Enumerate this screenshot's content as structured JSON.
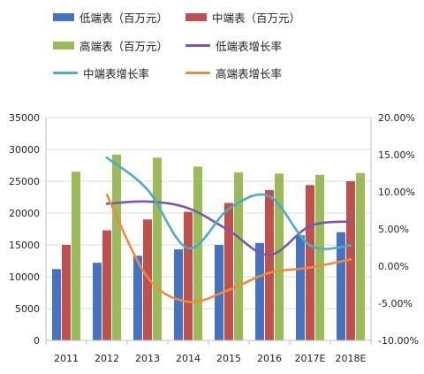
{
  "chart_data": {
    "type": "bar+line",
    "categories": [
      "2011",
      "2012",
      "2013",
      "2014",
      "2015",
      "2016",
      "2017E",
      "2018E"
    ],
    "bar_series": [
      {
        "name": "低端表（百万元）",
        "color": "#4472C4",
        "values": [
          11200,
          12200,
          13300,
          14300,
          15000,
          15300,
          16500,
          17000
        ]
      },
      {
        "name": "中端表（百万元）",
        "color": "#C0504D",
        "values": [
          15000,
          17300,
          19000,
          20200,
          21600,
          23600,
          24400,
          25000
        ]
      },
      {
        "name": "高端表（百万元）",
        "color": "#9BBB59",
        "values": [
          26500,
          29200,
          28700,
          27300,
          26400,
          26200,
          26000,
          26300
        ]
      }
    ],
    "line_series": [
      {
        "name": "低端表增长率",
        "color": "#7E57A3",
        "values": [
          null,
          8.4,
          8.7,
          7.8,
          4.8,
          1.5,
          5.4,
          6.0
        ]
      },
      {
        "name": "中端表增长率",
        "color": "#4BACC6",
        "values": [
          null,
          14.6,
          10.3,
          2.4,
          7.7,
          9.4,
          2.8,
          2.8
        ]
      },
      {
        "name": "高端表增长率",
        "color": "#F08A3C",
        "values": [
          null,
          9.6,
          -1.5,
          -4.8,
          -3.2,
          -0.9,
          -0.2,
          0.9
        ]
      }
    ],
    "y_left": {
      "min": 0,
      "max": 35000,
      "step": 5000,
      "ticks": [
        "0",
        "5000",
        "10000",
        "15000",
        "20000",
        "25000",
        "30000",
        "35000"
      ]
    },
    "y_right": {
      "min": -10,
      "max": 20,
      "step": 5,
      "ticks": [
        "-10.00%",
        "-5.00%",
        "0.00%",
        "5.00%",
        "10.00%",
        "15.00%",
        "20.00%"
      ]
    },
    "grid": true,
    "legend_position": "top"
  }
}
